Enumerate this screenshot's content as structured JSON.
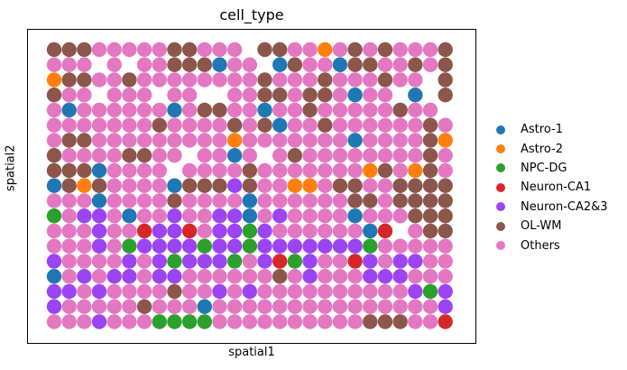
{
  "chart_data": {
    "type": "scatter",
    "title": "cell_type",
    "xlabel": "spatial1",
    "ylabel": "spatial2",
    "legend_position": "right",
    "axes_ticks": "none",
    "grid_columns": 27,
    "grid_rows": 19,
    "categories": [
      {
        "name": "Astro-1",
        "color": "#1f77b4"
      },
      {
        "name": "Astro-2",
        "color": "#ff7f0e"
      },
      {
        "name": "NPC-DG",
        "color": "#2ca02c"
      },
      {
        "name": "Neuron-CA1",
        "color": "#d62728"
      },
      {
        "name": "Neuron-CA2&3",
        "color": "#9b44f2"
      },
      {
        "name": "OL-WM",
        "color": "#8c564b"
      },
      {
        "name": "Others",
        "color": "#e377c2"
      }
    ],
    "spot_codes": {
      "A": "Astro-1",
      "B": "Astro-2",
      "N": "NPC-DG",
      "C": "Neuron-CA1",
      "P": "Neuron-CA2&3",
      "W": "OL-WM",
      "O": "Others",
      ".": "empty"
    },
    "spots": [
      "WWWOOOOOWWOOO.WWOOBOWOWOOOW",
      "OOO.O.OOWWWAOO.AWOOAWWOOWOW",
      "BWWOOWOOOOOOOOWOOOWOOOWOO.W",
      "WOO.OOO.OO..OOWWOWWOAOO.A.W",
      "OAOOOOOOAOWWOOAOOWOOOOOWOO.",
      "OOOOOOOWOOOOWOWAOOWOOOOOOWO",
      "OWWOOOOOOOOOBOOOOOOOAOOOOWB",
      "WOOOOWWOO.OOAO.OWOOOOOOOOWO",
      "WWWAOOOO.OOOOWOOOOOOOBWOBWO",
      "AWBWOOOOAWWWPWOOBBOWWOOWWWW",
      "OOOAOOOOWOOOOAOOOOOOWWOWWWW",
      "NOPPOAOOPOOPPAOPOOOOAOOOWWW",
      "OOOPOOCPPCOPPNPOOOOOOAC.OWW",
      "OOOPONPPPPNPPNPPPPPPPNOOOOO",
      "POOOOPOPNPPPNOPCNPOOCPOPPOO",
      "AOPOPPOPPOOOOOOWOPOOOPPPOOO",
      "PPOPOOOOWOOPOPOOOOOOOOOOPNP",
      "POOOOOWOOOAOOOOOOOOOOOOOOOP",
      "OOOPOOONNNNOOOOOOOOOOWWWOOC"
    ]
  }
}
